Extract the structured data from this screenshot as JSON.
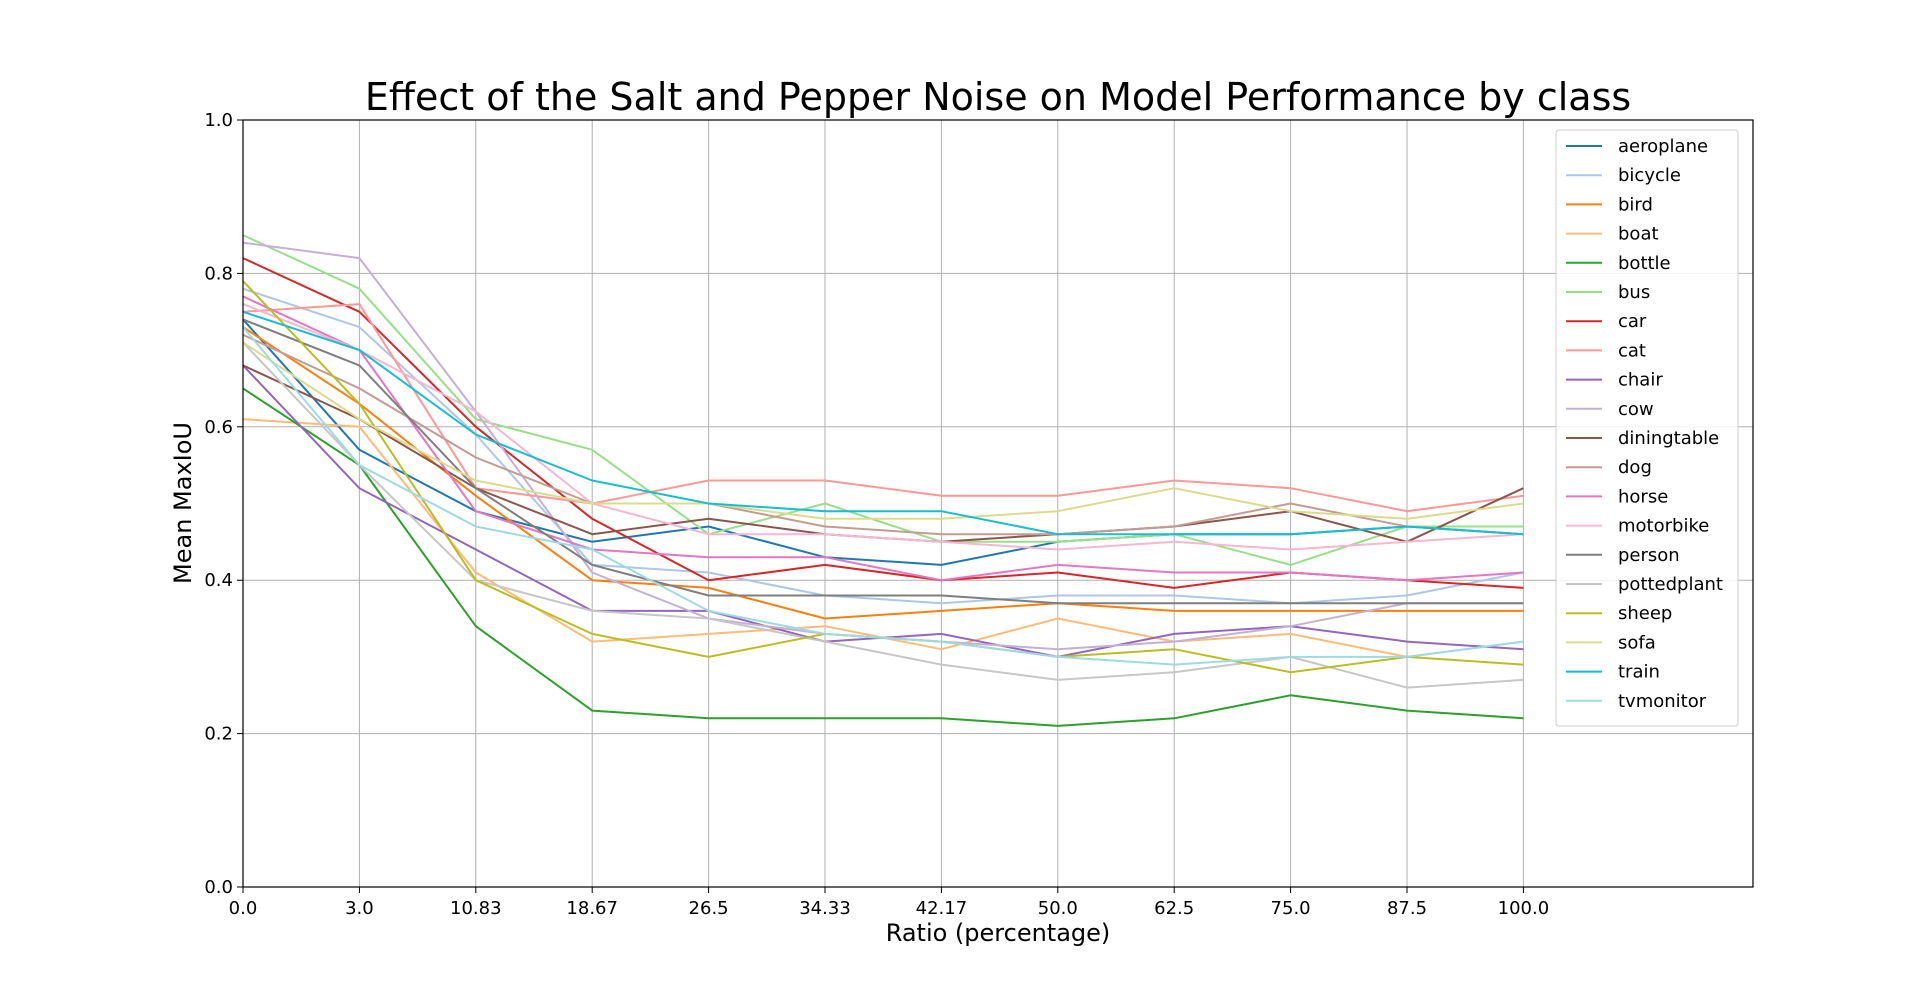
{
  "chart_data": {
    "type": "line",
    "title": "Effect of the Salt and Pepper Noise on Model Performance by class",
    "xlabel": "Ratio (percentage)",
    "ylabel": "Mean MaxIoU",
    "x_ticks": [
      "0.0",
      "3.0",
      "10.83",
      "18.67",
      "26.5",
      "34.33",
      "42.17",
      "50.0",
      "62.5",
      "75.0",
      "87.5",
      "100.0"
    ],
    "y_ticks": [
      "0.0",
      "0.2",
      "0.4",
      "0.6",
      "0.8",
      "1.0"
    ],
    "ylim": [
      0,
      1
    ],
    "grid": true,
    "legend_position": "top-right",
    "series": [
      {
        "name": "aeroplane",
        "color": "#1f77b4",
        "values": [
          0.74,
          0.57,
          0.49,
          0.45,
          0.47,
          0.43,
          0.42,
          0.45,
          0.46,
          0.46,
          0.47,
          0.46
        ]
      },
      {
        "name": "bicycle",
        "color": "#aec7e8",
        "values": [
          0.78,
          0.73,
          0.59,
          0.42,
          0.41,
          0.38,
          0.37,
          0.38,
          0.38,
          0.37,
          0.38,
          0.41
        ]
      },
      {
        "name": "bird",
        "color": "#ff7f0e",
        "values": [
          0.73,
          0.63,
          0.51,
          0.4,
          0.39,
          0.35,
          0.36,
          0.37,
          0.36,
          0.36,
          0.36,
          0.36
        ]
      },
      {
        "name": "boat",
        "color": "#ffbb78",
        "values": [
          0.61,
          0.6,
          0.41,
          0.32,
          0.33,
          0.34,
          0.31,
          0.35,
          0.32,
          0.33,
          0.3,
          0.32
        ]
      },
      {
        "name": "bottle",
        "color": "#2ca02c",
        "values": [
          0.65,
          0.55,
          0.34,
          0.23,
          0.22,
          0.22,
          0.22,
          0.21,
          0.22,
          0.25,
          0.23,
          0.22
        ]
      },
      {
        "name": "bus",
        "color": "#98df8a",
        "values": [
          0.85,
          0.78,
          0.61,
          0.57,
          0.46,
          0.5,
          0.45,
          0.45,
          0.46,
          0.42,
          0.47,
          0.47
        ]
      },
      {
        "name": "car",
        "color": "#d62728",
        "values": [
          0.82,
          0.75,
          0.6,
          0.48,
          0.4,
          0.42,
          0.4,
          0.41,
          0.39,
          0.41,
          0.4,
          0.39
        ]
      },
      {
        "name": "cat",
        "color": "#ff9896",
        "values": [
          0.75,
          0.76,
          0.52,
          0.5,
          0.53,
          0.53,
          0.51,
          0.51,
          0.53,
          0.52,
          0.49,
          0.51
        ]
      },
      {
        "name": "chair",
        "color": "#9467bd",
        "values": [
          0.68,
          0.52,
          0.44,
          0.36,
          0.36,
          0.32,
          0.33,
          0.3,
          0.33,
          0.34,
          0.32,
          0.31
        ]
      },
      {
        "name": "cow",
        "color": "#c5b0d5",
        "values": [
          0.84,
          0.82,
          0.62,
          0.41,
          0.35,
          0.33,
          0.32,
          0.31,
          0.32,
          0.34,
          0.37,
          0.37
        ]
      },
      {
        "name": "diningtable",
        "color": "#8c564b",
        "values": [
          0.68,
          0.61,
          0.52,
          0.46,
          0.48,
          0.46,
          0.45,
          0.46,
          0.47,
          0.49,
          0.45,
          0.52
        ]
      },
      {
        "name": "dog",
        "color": "#c49c94",
        "values": [
          0.72,
          0.65,
          0.56,
          0.5,
          0.5,
          0.47,
          0.46,
          0.46,
          0.47,
          0.5,
          0.47,
          0.46
        ]
      },
      {
        "name": "horse",
        "color": "#e377c2",
        "values": [
          0.77,
          0.7,
          0.49,
          0.44,
          0.43,
          0.43,
          0.4,
          0.42,
          0.41,
          0.41,
          0.4,
          0.41
        ]
      },
      {
        "name": "motorbike",
        "color": "#f7b6d2",
        "values": [
          0.76,
          0.7,
          0.62,
          0.5,
          0.46,
          0.46,
          0.45,
          0.44,
          0.45,
          0.44,
          0.45,
          0.46
        ]
      },
      {
        "name": "person",
        "color": "#7f7f7f",
        "values": [
          0.74,
          0.68,
          0.52,
          0.42,
          0.38,
          0.38,
          0.38,
          0.37,
          0.37,
          0.37,
          0.37,
          0.37
        ]
      },
      {
        "name": "pottedplant",
        "color": "#c7c7c7",
        "values": [
          0.71,
          0.55,
          0.4,
          0.36,
          0.35,
          0.32,
          0.29,
          0.27,
          0.28,
          0.3,
          0.26,
          0.27
        ]
      },
      {
        "name": "sheep",
        "color": "#bcbd22",
        "values": [
          0.79,
          0.63,
          0.4,
          0.33,
          0.3,
          0.33,
          0.32,
          0.3,
          0.31,
          0.28,
          0.3,
          0.29
        ]
      },
      {
        "name": "sofa",
        "color": "#dbdb8d",
        "values": [
          0.71,
          0.61,
          0.53,
          0.5,
          0.5,
          0.48,
          0.48,
          0.49,
          0.52,
          0.49,
          0.48,
          0.5
        ]
      },
      {
        "name": "train",
        "color": "#17becf",
        "values": [
          0.75,
          0.7,
          0.59,
          0.53,
          0.5,
          0.49,
          0.49,
          0.46,
          0.46,
          0.46,
          0.47,
          0.46
        ]
      },
      {
        "name": "tvmonitor",
        "color": "#9edae5",
        "values": [
          0.73,
          0.55,
          0.47,
          0.44,
          0.36,
          0.33,
          0.32,
          0.3,
          0.29,
          0.3,
          0.3,
          0.32
        ]
      }
    ]
  }
}
